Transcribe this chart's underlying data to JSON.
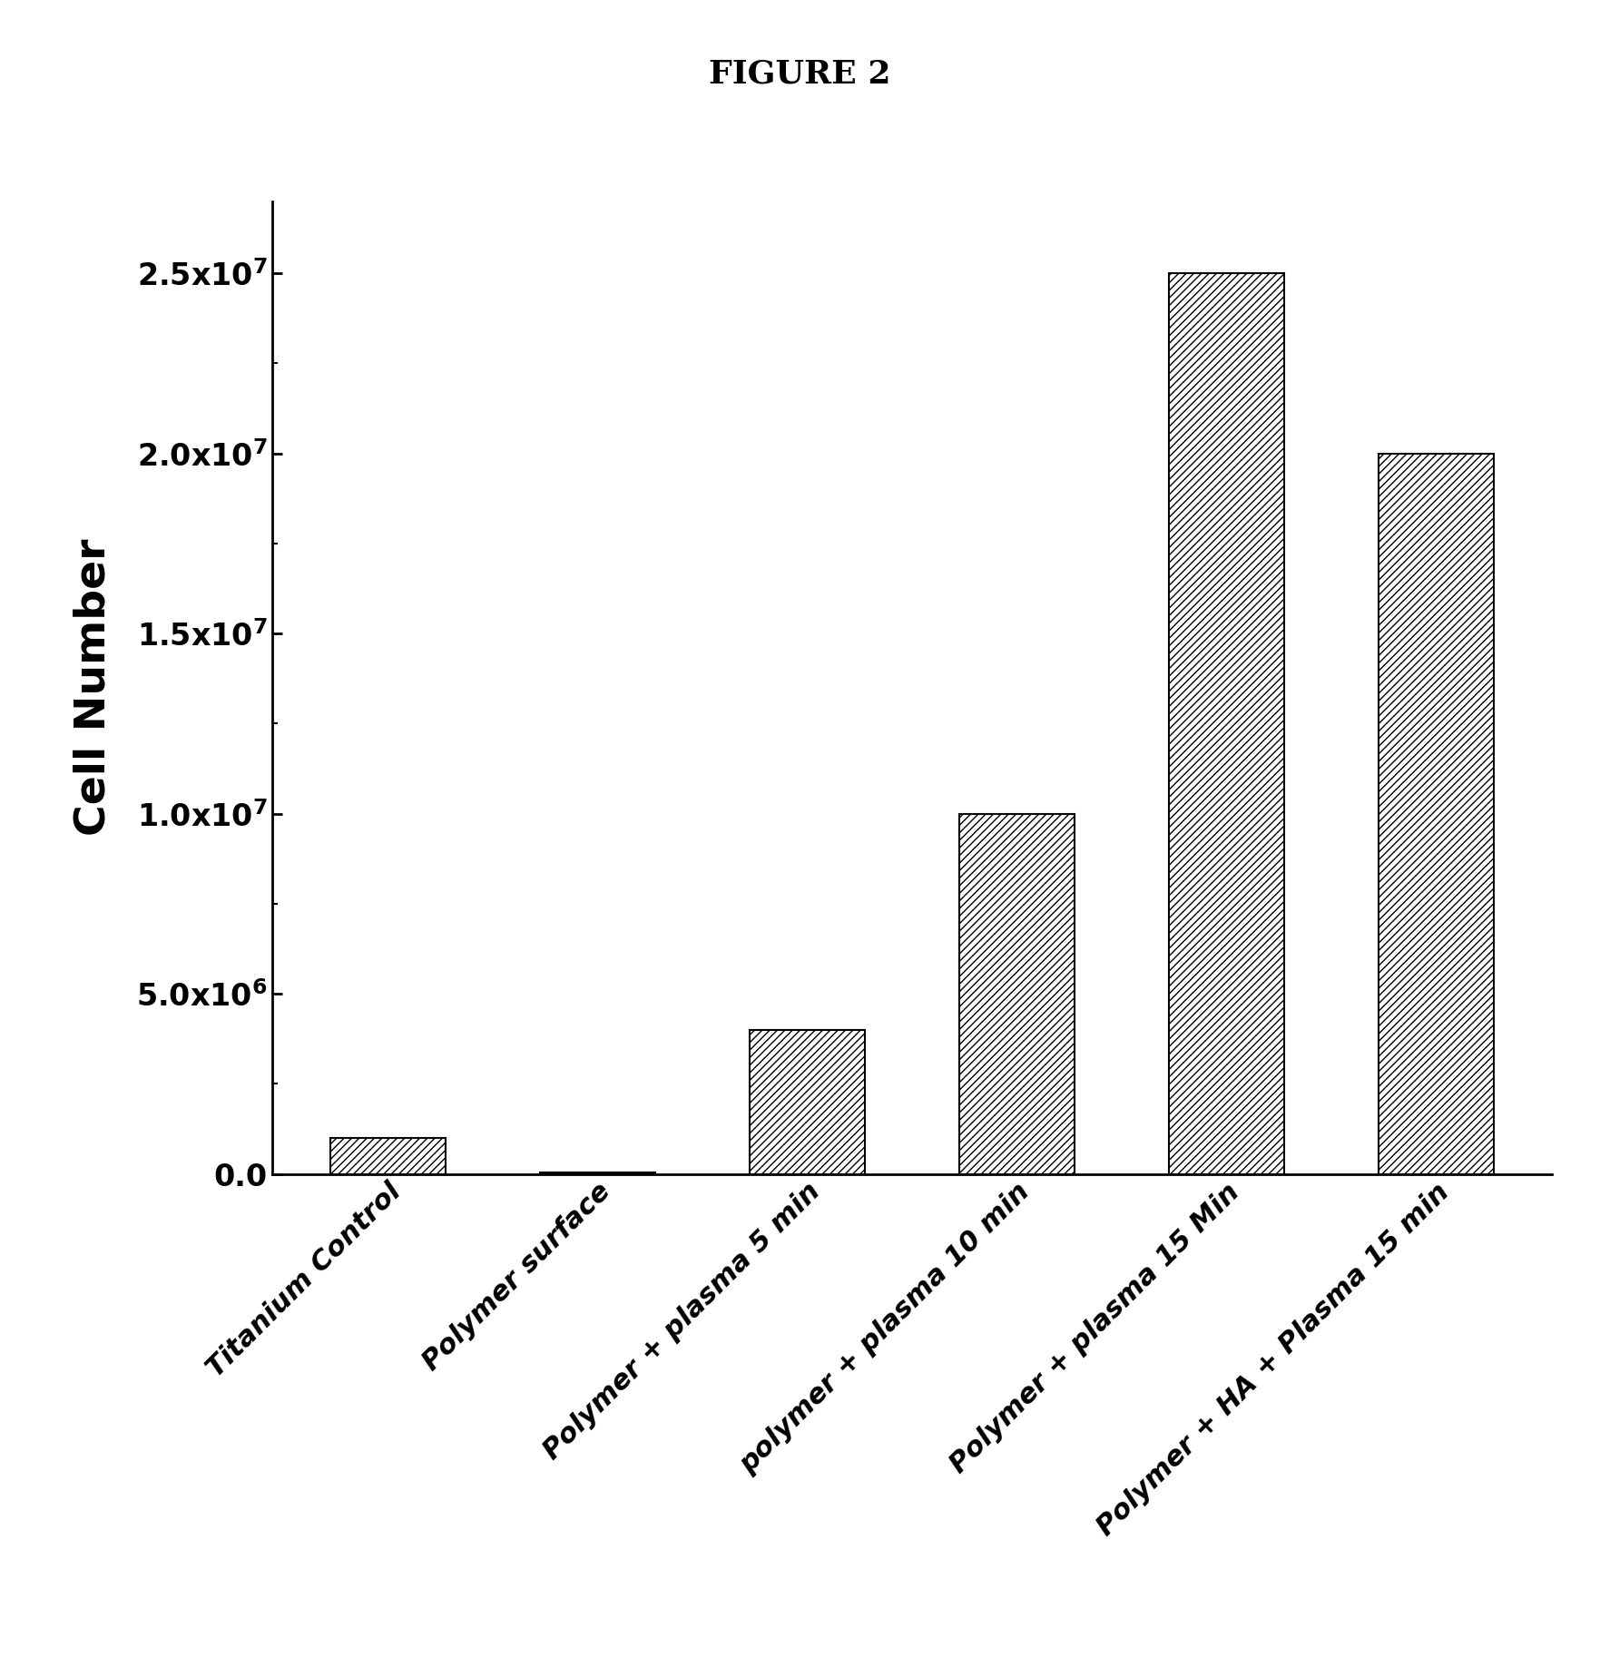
{
  "title": "FIGURE 2",
  "ylabel": "Cell Number",
  "categories": [
    "Titanium Control",
    "Polymer surface",
    "Polymer + plasma 5 min",
    "polymer + plasma 10 min",
    "Polymer + plasma 15 Min",
    "Polymer + HA + Plasma 15 min"
  ],
  "values": [
    1000000,
    50000,
    4000000,
    10000000,
    25000000,
    20000000
  ],
  "yticks": [
    0.0,
    5000000,
    10000000,
    15000000,
    20000000,
    25000000
  ],
  "ylim": [
    0,
    27000000
  ],
  "bar_color": "#ffffff",
  "bar_edgecolor": "#000000",
  "hatch_pattern": "////",
  "background_color": "#ffffff",
  "title_fontsize": 26,
  "ylabel_fontsize": 34,
  "ytick_fontsize": 24,
  "xtick_fontsize": 22,
  "spine_linewidth": 2.0,
  "bar_linewidth": 1.5,
  "bar_width": 0.55
}
